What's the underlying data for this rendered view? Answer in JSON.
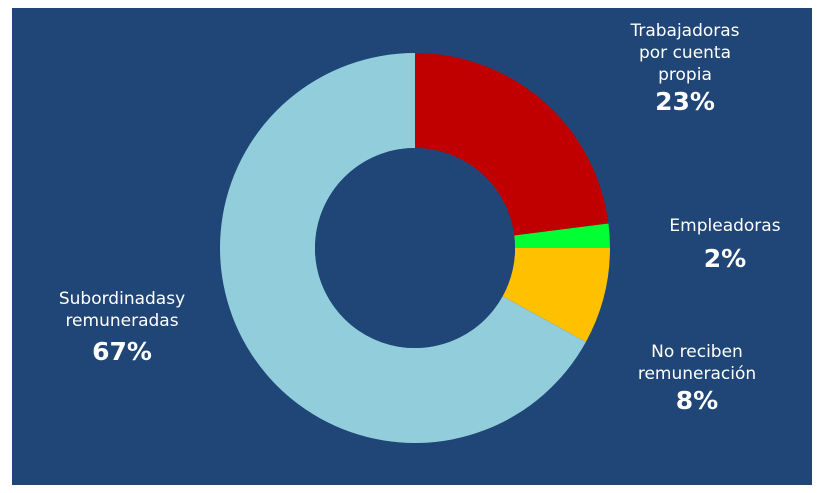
{
  "chart_data": {
    "type": "pie",
    "style": "donut",
    "title": "",
    "legend": "none",
    "start_angle_deg": 0,
    "direction": "clockwise",
    "slices": [
      {
        "name": "Trabajadoras por cuenta propia",
        "label_lines": [
          "Trabajadoras",
          "por cuenta",
          "propia"
        ],
        "value": 23,
        "value_label": "23%",
        "color": "#c00000"
      },
      {
        "name": "Empleadoras",
        "label_lines": [
          "Empleadoras"
        ],
        "value": 2,
        "value_label": "2%",
        "color": "#00ff33"
      },
      {
        "name": "No reciben remuneración",
        "label_lines": [
          "No reciben",
          "remuneración"
        ],
        "value": 8,
        "value_label": "8%",
        "color": "#ffc000"
      },
      {
        "name": "Subordinadas y remuneradas",
        "label_lines": [
          "Subordinadasy",
          "remuneradas"
        ],
        "value": 67,
        "value_label": "67%",
        "color": "#92cddc"
      }
    ],
    "background_color": "#1f4677",
    "hole_color": "#1f4677",
    "label_color": "#ffffff"
  }
}
